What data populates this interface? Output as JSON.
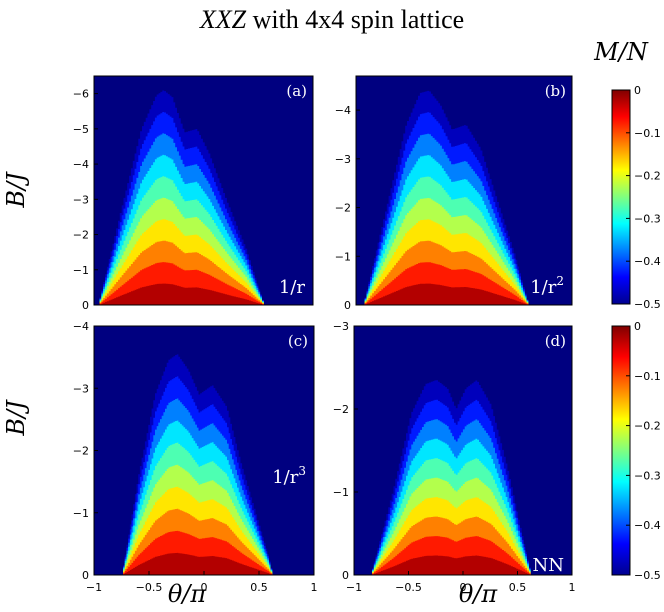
{
  "figure": {
    "title_italic": "XXZ",
    "title_rest": " with 4x4 spin lattice",
    "colorbar_label": "M/N",
    "colors": {
      "background": "#000080",
      "stops": [
        "#00008f",
        "#0000ff",
        "#0080ff",
        "#00ffff",
        "#80ff80",
        "#ffff00",
        "#ff8000",
        "#ff0000",
        "#800000"
      ]
    }
  },
  "chart_data": [
    {
      "type": "heatmap",
      "panel": "(a)",
      "annotation_base": "1/r",
      "annotation_sup": "",
      "xlabel": "",
      "ylabel": "B/J",
      "xlim": [
        -0.78,
        1
      ],
      "ylim": [
        0,
        -6.5
      ],
      "yticks": [
        "0",
        "−1",
        "−2",
        "−3",
        "−4",
        "−5",
        "−6"
      ],
      "xticks": [],
      "levels": [
        -0.5,
        -0.45,
        -0.4,
        -0.35,
        -0.3,
        -0.25,
        -0.2,
        -0.15,
        -0.1,
        -0.05
      ],
      "boundary_theta": [
        -0.75,
        -0.55,
        -0.4,
        -0.28,
        -0.22,
        -0.15,
        -0.05,
        0.05,
        0.15,
        0.3,
        0.45,
        0.55,
        0.6
      ],
      "boundary_B": [
        0,
        -2.9,
        -5.0,
        -5.95,
        -6.1,
        -5.9,
        -4.9,
        -5.0,
        -4.3,
        -2.9,
        -1.6,
        -0.5,
        0
      ]
    },
    {
      "type": "heatmap",
      "panel": "(b)",
      "annotation_base": "1/r",
      "annotation_sup": "2",
      "xlabel": "",
      "ylabel": "",
      "xlim": [
        -0.88,
        1
      ],
      "ylim": [
        0,
        -4.7
      ],
      "yticks": [
        "0",
        "−1",
        "−2",
        "−3",
        "−4"
      ],
      "xticks": [],
      "levels": [
        -0.5,
        -0.45,
        -0.4,
        -0.35,
        -0.3,
        -0.25,
        -0.2,
        -0.15,
        -0.1,
        -0.05
      ],
      "boundary_theta": [
        -0.82,
        -0.6,
        -0.45,
        -0.33,
        -0.25,
        -0.15,
        -0.05,
        0.07,
        0.2,
        0.35,
        0.5,
        0.58,
        0.62
      ],
      "boundary_B": [
        0,
        -2.2,
        -3.7,
        -4.35,
        -4.4,
        -4.1,
        -3.6,
        -3.7,
        -3.2,
        -2.1,
        -1.0,
        -0.3,
        0
      ]
    },
    {
      "type": "heatmap",
      "panel": "(c)",
      "annotation_base": "1/r",
      "annotation_sup": "3",
      "xlabel": "θ/π",
      "ylabel": "B/J",
      "xlim": [
        -1,
        1
      ],
      "ylim": [
        0,
        -4
      ],
      "yticks": [
        "0",
        "−1",
        "−2",
        "−3",
        "−4"
      ],
      "xticks": [
        "−1",
        "−0.5",
        "0",
        "0.5",
        "1"
      ],
      "levels": [
        -0.5,
        -0.45,
        -0.4,
        -0.35,
        -0.3,
        -0.25,
        -0.2,
        -0.15,
        -0.1,
        -0.05
      ],
      "boundary_theta": [
        -0.75,
        -0.6,
        -0.45,
        -0.33,
        -0.25,
        -0.15,
        -0.05,
        0.07,
        0.2,
        0.33,
        0.48,
        0.58,
        0.62
      ],
      "boundary_B": [
        0,
        -1.6,
        -2.9,
        -3.45,
        -3.55,
        -3.3,
        -2.9,
        -3.05,
        -2.7,
        -1.8,
        -0.9,
        -0.3,
        0
      ]
    },
    {
      "type": "heatmap",
      "panel": "(d)",
      "annotation_base": "NN",
      "annotation_sup": "",
      "xlabel": "θ/π",
      "ylabel": "",
      "xlim": [
        -1,
        1
      ],
      "ylim": [
        0,
        -3
      ],
      "yticks": [
        "0",
        "−1",
        "−2",
        "−3"
      ],
      "xticks": [
        "−1",
        "−0.5",
        "0",
        "0.5",
        "1"
      ],
      "levels": [
        -0.5,
        -0.45,
        -0.4,
        -0.35,
        -0.3,
        -0.25,
        -0.2,
        -0.15,
        -0.1,
        -0.05
      ],
      "boundary_theta": [
        -0.85,
        -0.65,
        -0.48,
        -0.35,
        -0.25,
        -0.15,
        -0.07,
        0.02,
        0.12,
        0.25,
        0.4,
        0.55,
        0.62
      ],
      "boundary_B": [
        0,
        -1.0,
        -1.95,
        -2.3,
        -2.35,
        -2.25,
        -2.0,
        -2.25,
        -2.35,
        -2.05,
        -1.3,
        -0.4,
        0
      ]
    }
  ],
  "colorbars": [
    {
      "ticks": [
        "0",
        "−0.1",
        "−0.2",
        "−0.3",
        "−0.4",
        "−0.5"
      ],
      "range": [
        -0.5,
        0
      ]
    },
    {
      "ticks": [
        "0",
        "−0.1",
        "−0.2",
        "−0.3",
        "−0.4",
        "−0.5"
      ],
      "range": [
        -0.5,
        0
      ]
    }
  ]
}
